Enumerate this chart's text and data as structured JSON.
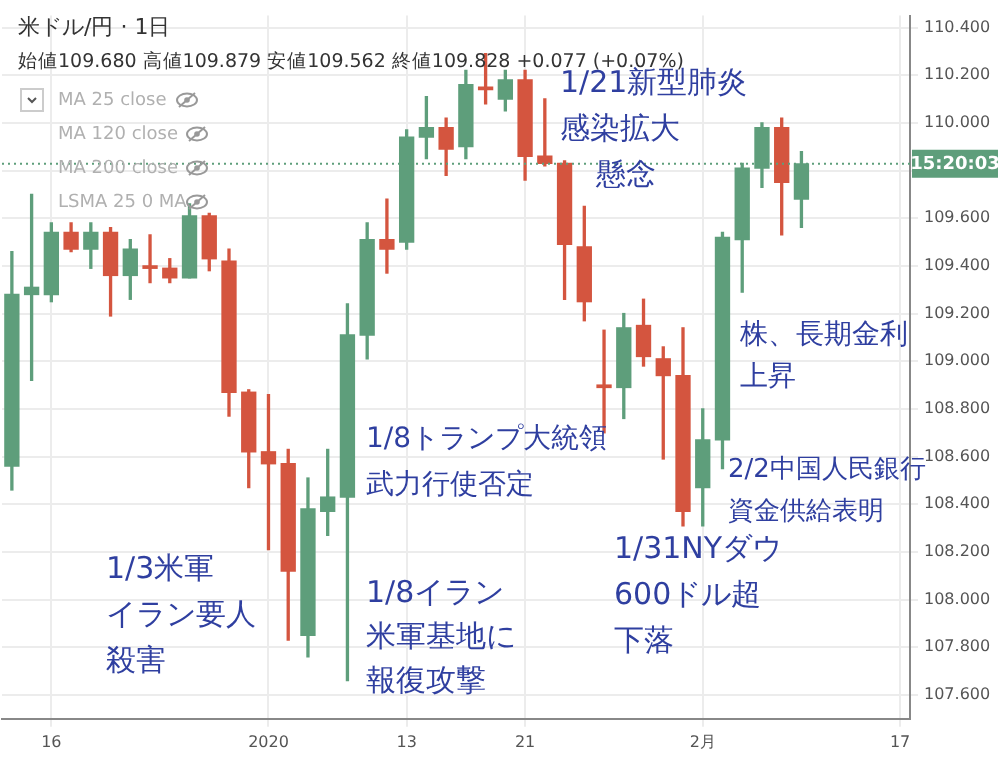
{
  "chart_data": {
    "type": "candlestick",
    "title": "米ドル/円 · 1日",
    "subtitle": "始値109.680 高値109.879 安値109.562 終値109.828 +0.077 (+0.07%)",
    "categories": [
      null,
      null,
      "16",
      null,
      null,
      null,
      null,
      null,
      null,
      null,
      null,
      null,
      null,
      "2020",
      null,
      null,
      null,
      null,
      null,
      null,
      "13",
      null,
      null,
      null,
      null,
      null,
      "21",
      null,
      null,
      null,
      null,
      null,
      null,
      null,
      null,
      "2月",
      null,
      null,
      null,
      null,
      null,
      null,
      null,
      null,
      null,
      "17"
    ],
    "ohlc": [
      [
        108.56,
        109.46,
        108.46,
        109.28
      ],
      [
        109.28,
        109.7,
        108.92,
        109.31
      ],
      [
        109.28,
        109.58,
        109.25,
        109.54
      ],
      [
        109.54,
        109.58,
        109.46,
        109.47
      ],
      [
        109.47,
        109.58,
        109.39,
        109.54
      ],
      [
        109.54,
        109.56,
        109.19,
        109.36
      ],
      [
        109.36,
        109.51,
        109.26,
        109.47
      ],
      [
        109.4,
        109.53,
        109.33,
        109.39
      ],
      [
        109.39,
        109.43,
        109.33,
        109.35
      ],
      [
        109.35,
        109.66,
        109.35,
        109.61
      ],
      [
        109.61,
        109.62,
        109.38,
        109.43
      ],
      [
        109.42,
        109.47,
        108.77,
        108.87
      ],
      [
        108.87,
        108.88,
        108.47,
        108.62
      ],
      [
        108.62,
        108.86,
        108.21,
        108.57
      ],
      [
        108.57,
        108.63,
        107.83,
        108.12
      ],
      [
        107.85,
        108.51,
        107.76,
        108.38
      ],
      [
        108.37,
        108.63,
        108.27,
        108.43
      ],
      [
        108.43,
        109.24,
        107.66,
        109.11
      ],
      [
        109.11,
        109.58,
        109.01,
        109.51
      ],
      [
        109.51,
        109.68,
        109.37,
        109.47
      ],
      [
        109.5,
        109.97,
        109.47,
        109.94
      ],
      [
        109.94,
        110.11,
        109.85,
        109.98
      ],
      [
        109.98,
        110.02,
        109.78,
        109.89
      ],
      [
        109.9,
        110.22,
        109.85,
        110.16
      ],
      [
        110.15,
        110.29,
        110.08,
        110.14
      ],
      [
        110.1,
        110.22,
        110.05,
        110.18
      ],
      [
        110.18,
        110.22,
        109.76,
        109.86
      ],
      [
        109.86,
        110.1,
        109.82,
        109.83
      ],
      [
        109.83,
        109.84,
        109.26,
        109.49
      ],
      [
        109.48,
        109.65,
        109.17,
        109.25
      ],
      [
        108.9,
        109.13,
        108.7,
        108.89
      ],
      [
        108.89,
        109.2,
        108.76,
        109.14
      ],
      [
        109.15,
        109.26,
        108.98,
        109.02
      ],
      [
        109.01,
        109.06,
        108.59,
        108.94
      ],
      [
        108.94,
        109.14,
        108.31,
        108.37
      ],
      [
        108.47,
        108.8,
        108.31,
        108.67
      ],
      [
        108.67,
        109.54,
        108.55,
        109.52
      ],
      [
        109.51,
        109.83,
        109.29,
        109.81
      ],
      [
        109.81,
        110.0,
        109.73,
        109.98
      ],
      [
        109.98,
        110.02,
        109.53,
        109.75
      ],
      [
        109.68,
        109.879,
        109.562,
        109.828
      ],
      null,
      null,
      null,
      null,
      null
    ],
    "colors": [
      "#5e9e7b",
      "#5e9e7b",
      "#5e9e7b",
      "#d4553f",
      "#5e9e7b",
      "#d4553f",
      "#5e9e7b",
      "#d4553f",
      "#d4553f",
      "#5e9e7b",
      "#d4553f",
      "#d4553f",
      "#d4553f",
      "#d4553f",
      "#d4553f",
      "#5e9e7b",
      "#5e9e7b",
      "#5e9e7b",
      "#5e9e7b",
      "#d4553f",
      "#5e9e7b",
      "#5e9e7b",
      "#d4553f",
      "#5e9e7b",
      "#d4553f",
      "#5e9e7b",
      "#d4553f",
      "#d4553f",
      "#d4553f",
      "#d4553f",
      "#d4553f",
      "#5e9e7b",
      "#d4553f",
      "#d4553f",
      "#d4553f",
      "#5e9e7b",
      "#5e9e7b",
      "#5e9e7b",
      "#5e9e7b",
      "#d4553f",
      "#5e9e7b",
      null,
      null,
      null,
      null,
      null
    ],
    "ylim": [
      107.5,
      110.45
    ],
    "yticks": [
      {
        "value": 107.6,
        "label": "107.600"
      },
      {
        "value": 107.8,
        "label": "107.800"
      },
      {
        "value": 108.0,
        "label": "108.000"
      },
      {
        "value": 108.2,
        "label": "108.200"
      },
      {
        "value": 108.4,
        "label": "108.400"
      },
      {
        "value": 108.6,
        "label": "108.600"
      },
      {
        "value": 108.8,
        "label": "108.800"
      },
      {
        "value": 109.0,
        "label": "109.000"
      },
      {
        "value": 109.2,
        "label": "109.200"
      },
      {
        "value": 109.4,
        "label": "109.400"
      },
      {
        "value": 109.6,
        "label": "109.600"
      },
      {
        "value": 109.8,
        "label": null
      },
      {
        "value": 110.0,
        "label": "110.000"
      },
      {
        "value": 110.2,
        "label": "110.200"
      },
      {
        "value": 110.4,
        "label": "110.400"
      }
    ],
    "grid": true,
    "ref_lines": [
      {
        "axis": "y",
        "value": 109.828,
        "color": "#5e9e7b",
        "line_style": "dotted"
      }
    ],
    "annotations": [
      "MA 25 close",
      "MA 120 close",
      "MA 200 close",
      "LSMA 25 0 MA",
      "1/21新型肺炎感染拡大懸念",
      "株、長期金利上昇",
      "1/8トランプ大統領武力行使否定",
      "2/2中国人民銀行資金供給表明",
      "1/31NYダウ600ドル超下落",
      "1/3米軍イラン要人殺害",
      "1/8イラン米軍基地に報復攻撃",
      "15:20:03"
    ]
  }
}
